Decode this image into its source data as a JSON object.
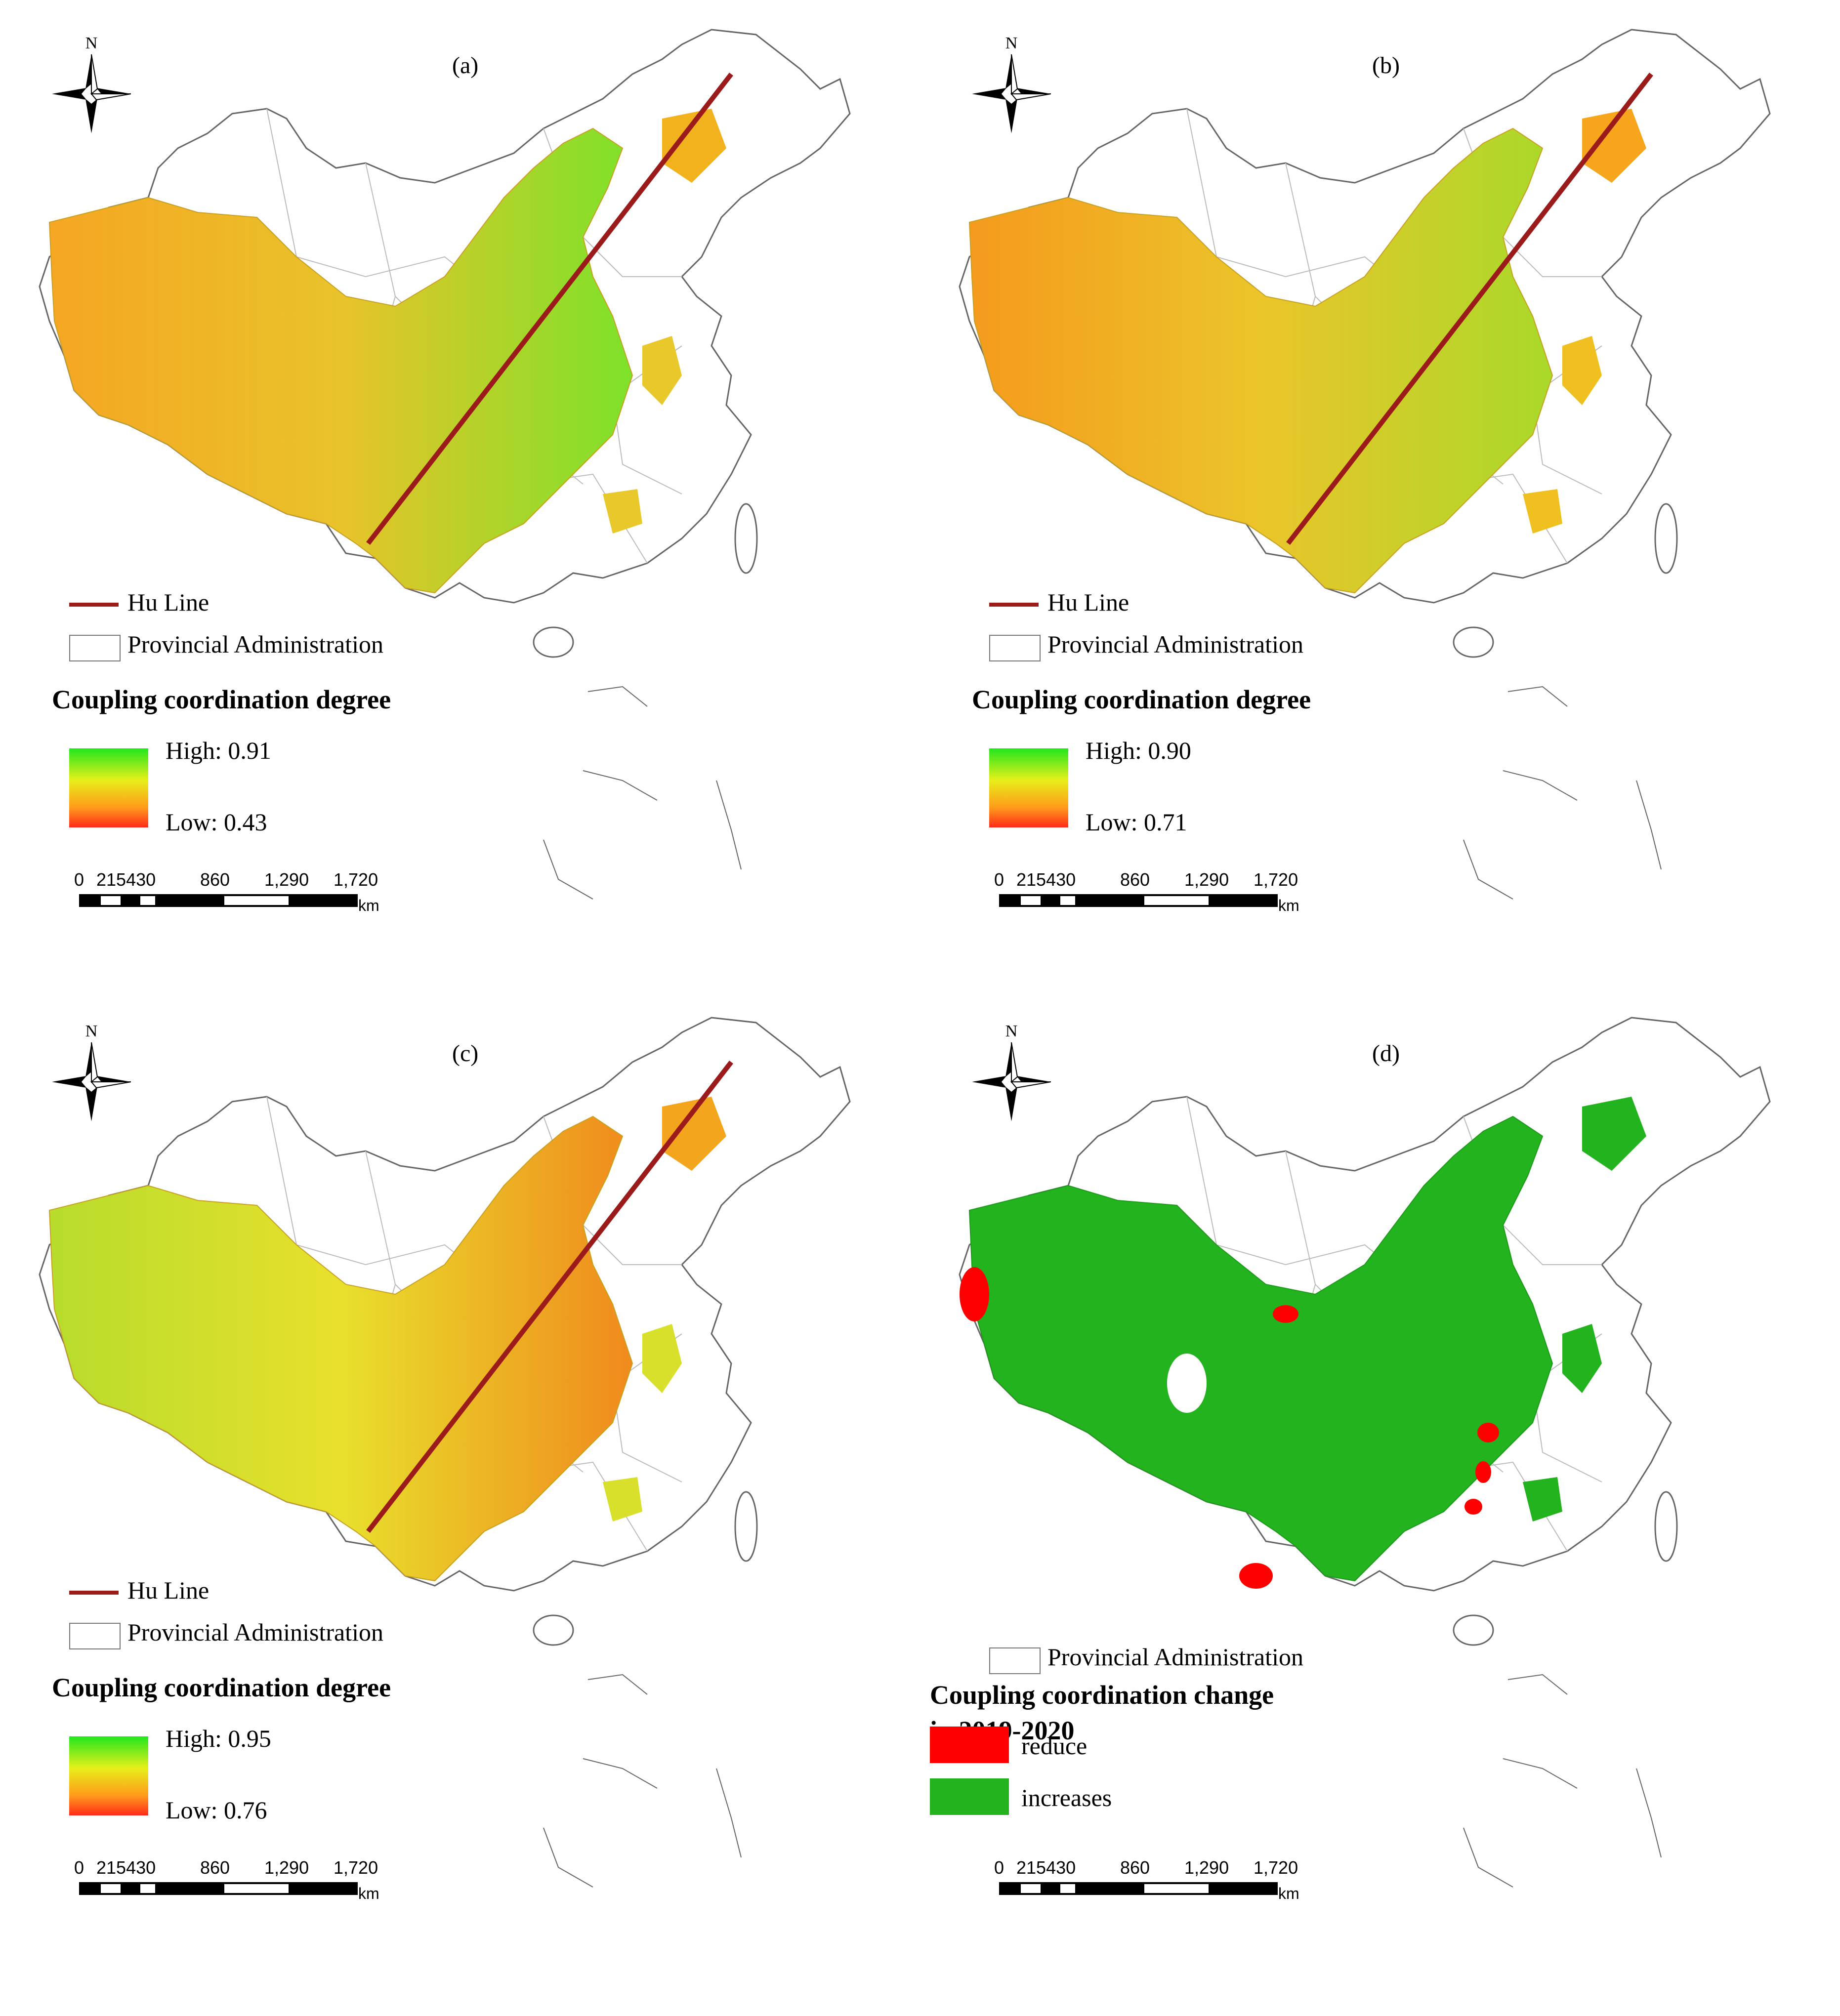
{
  "panels": [
    {
      "label": "(a)",
      "hu_line": "Hu Line",
      "province": "Provincial Administration",
      "legend_title_1": "Coupling coordination degree",
      "legend_title_2": "",
      "high": "High: 0.91",
      "low": "Low: 0.43",
      "style": "gradient",
      "tint": "a"
    },
    {
      "label": "(b)",
      "hu_line": "Hu Line",
      "province": "Provincial Administration",
      "legend_title_1": "Coupling coordination degree",
      "legend_title_2": "",
      "high": "High: 0.90",
      "low": "Low: 0.71",
      "style": "gradient",
      "tint": "b"
    },
    {
      "label": "(c)",
      "hu_line": "Hu Line",
      "province": "Provincial Administration",
      "legend_title_1": "Coupling coordination degree",
      "legend_title_2": "",
      "high": "High: 0.95",
      "low": "Low: 0.76",
      "style": "gradient",
      "tint": "c"
    },
    {
      "label": "(d)",
      "hu_line": "",
      "province": "Provincial Administration",
      "legend_title_1": "Coupling coordination change",
      "legend_title_2": "in 2019-2020",
      "high": "",
      "low": "",
      "style": "change",
      "reduce": "reduce",
      "increases": "increases"
    }
  ],
  "north_label": "N",
  "scale": {
    "ticks": [
      "0",
      "215430",
      "860",
      "1,290",
      "1,720"
    ],
    "unit": "km"
  },
  "colors": {
    "hu_line": "#9b1b1b",
    "reduce": "#ff0000",
    "increase": "#22b31e",
    "high": "#22e61e",
    "low": "#ff2a1a"
  }
}
